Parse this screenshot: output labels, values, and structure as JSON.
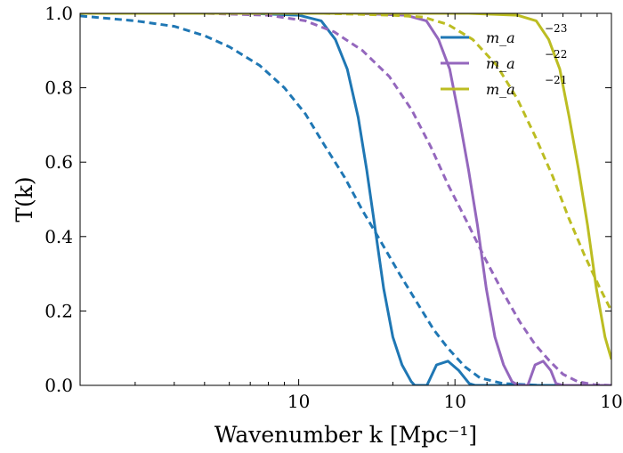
{
  "chart_data": {
    "type": "line",
    "xlabel": "Wavenumber k [Mpc⁻¹]",
    "ylabel": "T(k)",
    "xscale": "log",
    "xlim": [
      2,
      100
    ],
    "ylim": [
      0,
      1.0
    ],
    "x_ticks": [
      {
        "value": 10,
        "label": "10"
      },
      {
        "value": 31.6,
        "label": "10"
      },
      {
        "value": 100,
        "label": "10"
      }
    ],
    "y_ticks": [
      {
        "value": 0.0,
        "label": "0.0"
      },
      {
        "value": 0.2,
        "label": "0.2"
      },
      {
        "value": 0.4,
        "label": "0.4"
      },
      {
        "value": 0.6,
        "label": "0.6"
      },
      {
        "value": 0.8,
        "label": "0.8"
      },
      {
        "value": 1.0,
        "label": "1.0"
      }
    ],
    "legend_position": "top-right",
    "series": [
      {
        "name": "m_a ⁻²³",
        "legend_main": "m_a",
        "legend_exp": "−23",
        "color": "#1f77b4",
        "solid": {
          "x": [
            2,
            7,
            10,
            11.8,
            13.1,
            14.3,
            15.5,
            16.5,
            17.5,
            18.7,
            20,
            21.4,
            22.9,
            23.5,
            25.7,
            27.6,
            30,
            32.5,
            35.1,
            36.7,
            40,
            50,
            100
          ],
          "y": [
            1.0,
            1.0,
            0.995,
            0.98,
            0.93,
            0.85,
            0.72,
            0.58,
            0.43,
            0.26,
            0.13,
            0.055,
            0.01,
            0.0,
            0.0,
            0.055,
            0.065,
            0.04,
            0.005,
            0.0,
            0.0,
            0.0,
            0.0
          ]
        },
        "dashed": {
          "x": [
            2,
            3,
            4,
            5,
            6,
            7.5,
            9,
            10.5,
            12,
            14,
            16,
            18.5,
            21,
            24,
            27,
            30,
            34,
            38,
            45,
            60,
            100
          ],
          "y": [
            0.993,
            0.98,
            0.965,
            0.94,
            0.91,
            0.86,
            0.8,
            0.73,
            0.65,
            0.56,
            0.47,
            0.38,
            0.3,
            0.22,
            0.15,
            0.1,
            0.05,
            0.02,
            0.005,
            0.0,
            0.0
          ]
        }
      },
      {
        "name": "m_a ⁻²²",
        "legend_main": "m_a",
        "legend_exp": "−22",
        "color": "#9467bd",
        "solid": {
          "x": [
            2,
            15,
            22,
            25.6,
            28,
            30.4,
            32.6,
            34.9,
            37.3,
            39.8,
            42.4,
            45.2,
            48.1,
            50.4,
            54,
            57,
            60.5,
            64,
            66.5,
            70,
            100
          ],
          "y": [
            1.0,
            1.0,
            0.995,
            0.98,
            0.93,
            0.85,
            0.72,
            0.58,
            0.43,
            0.26,
            0.13,
            0.055,
            0.01,
            0.0,
            0.0,
            0.055,
            0.065,
            0.04,
            0.005,
            0.0,
            0.0
          ]
        },
        "dashed": {
          "x": [
            2,
            5,
            8,
            10.5,
            13,
            16,
            19.5,
            23,
            26.5,
            30,
            34.5,
            39.5,
            45,
            51,
            57,
            63.5,
            70,
            78,
            88,
            100
          ],
          "y": [
            1.0,
            1.0,
            0.995,
            0.98,
            0.95,
            0.9,
            0.83,
            0.74,
            0.64,
            0.54,
            0.44,
            0.34,
            0.25,
            0.17,
            0.11,
            0.065,
            0.03,
            0.01,
            0.002,
            0.0
          ]
        }
      },
      {
        "name": "m_a ⁻²¹",
        "legend_main": "m_a",
        "legend_exp": "−21",
        "color": "#bcbd22",
        "solid": {
          "x": [
            2,
            35,
            50,
            57.5,
            63,
            68.4,
            73.3,
            78.5,
            83.9,
            89.5,
            95.4,
            100
          ],
          "y": [
            1.0,
            1.0,
            0.995,
            0.98,
            0.93,
            0.85,
            0.72,
            0.58,
            0.43,
            0.26,
            0.13,
            0.07
          ]
        },
        "dashed": {
          "x": [
            2,
            12,
            20,
            25,
            30,
            36,
            43,
            50,
            57,
            65,
            73,
            82,
            92,
            100
          ],
          "y": [
            1.0,
            1.0,
            0.995,
            0.99,
            0.97,
            0.93,
            0.86,
            0.77,
            0.67,
            0.56,
            0.45,
            0.35,
            0.26,
            0.2
          ]
        }
      }
    ]
  }
}
